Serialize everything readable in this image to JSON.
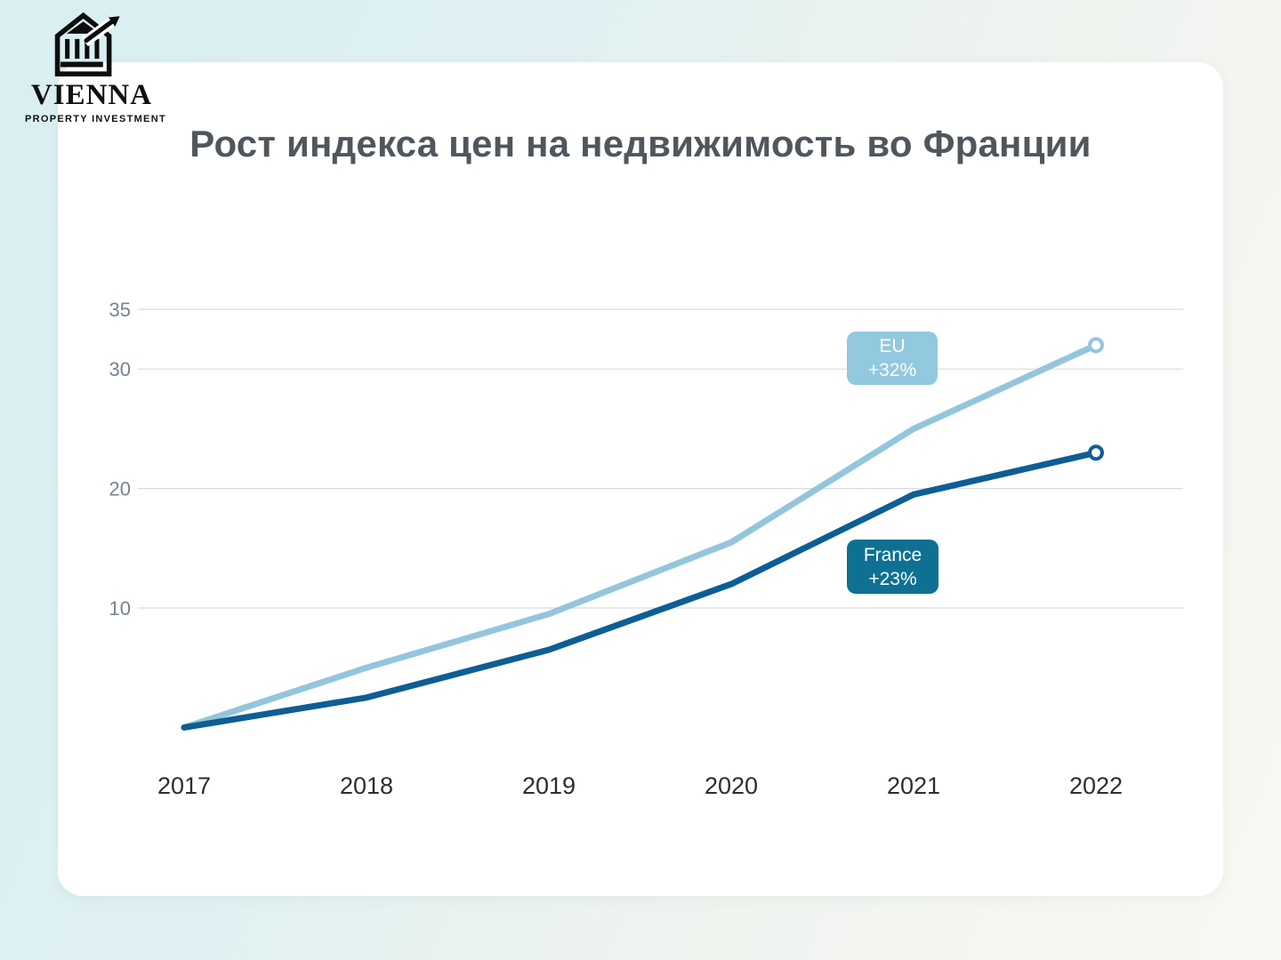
{
  "logo": {
    "name": "VIENNA",
    "tagline": "PROPERTY INVESTMENT"
  },
  "title": "Рост индекса цен на недвижимость во Франции",
  "colors": {
    "title_text": "#4f565c",
    "gridline": "#d8dbde",
    "ytick_text": "#77838f",
    "xtick_text": "#2b2e33",
    "card_background": "#ffffff",
    "page_background_left": "#d9eff2",
    "page_background_right": "#f9f8f2",
    "eu_accent": "#92c9de",
    "france_accent": "#0e7193"
  },
  "chart_data": {
    "type": "line",
    "title": "Рост индекса цен на недвижимость во Франции",
    "x": [
      "2017",
      "2018",
      "2019",
      "2020",
      "2021",
      "2022"
    ],
    "xlabel": "",
    "ylabel": "",
    "yticks": [
      10,
      20,
      30,
      35
    ],
    "ylim": [
      0,
      36.5
    ],
    "grid": true,
    "legend_position": "inline-badges",
    "series": [
      {
        "name": "EU",
        "change_label": "+32%",
        "color": "#92c9de",
        "line_color": "#93c6dd",
        "values": [
          0,
          5,
          9.5,
          15.5,
          25,
          32
        ],
        "end_marker": "open-circle"
      },
      {
        "name": "France",
        "change_label": "+23%",
        "color": "#0e7193",
        "line_color": "#0d5e94",
        "values": [
          0,
          2.5,
          6.5,
          12,
          19.5,
          23
        ],
        "end_marker": "open-circle"
      }
    ]
  }
}
